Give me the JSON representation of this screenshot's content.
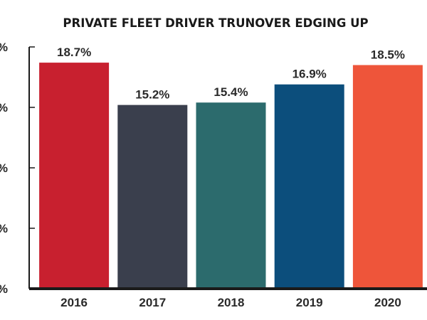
{
  "chart_data": {
    "type": "bar",
    "title": "PRIVATE FLEET DRIVER TRUNOVER EDGING UP",
    "xlabel": "",
    "ylabel": "",
    "categories": [
      "2016",
      "2017",
      "2018",
      "2019",
      "2020"
    ],
    "values": [
      18.7,
      15.2,
      15.4,
      16.9,
      18.5
    ],
    "data_labels": [
      "18.7%",
      "15.2%",
      "15.4%",
      "16.9%",
      "18.5%"
    ],
    "colors": [
      "#c8202f",
      "#3a3f4d",
      "#2c6b6d",
      "#0c4e7c",
      "#ee553a"
    ],
    "ylim": [
      0,
      20
    ],
    "yticks": [
      0,
      5,
      10,
      15,
      20
    ],
    "ytick_labels": [
      "%",
      "%",
      "%",
      "%",
      "%"
    ],
    "grid": false,
    "legend": "none"
  }
}
